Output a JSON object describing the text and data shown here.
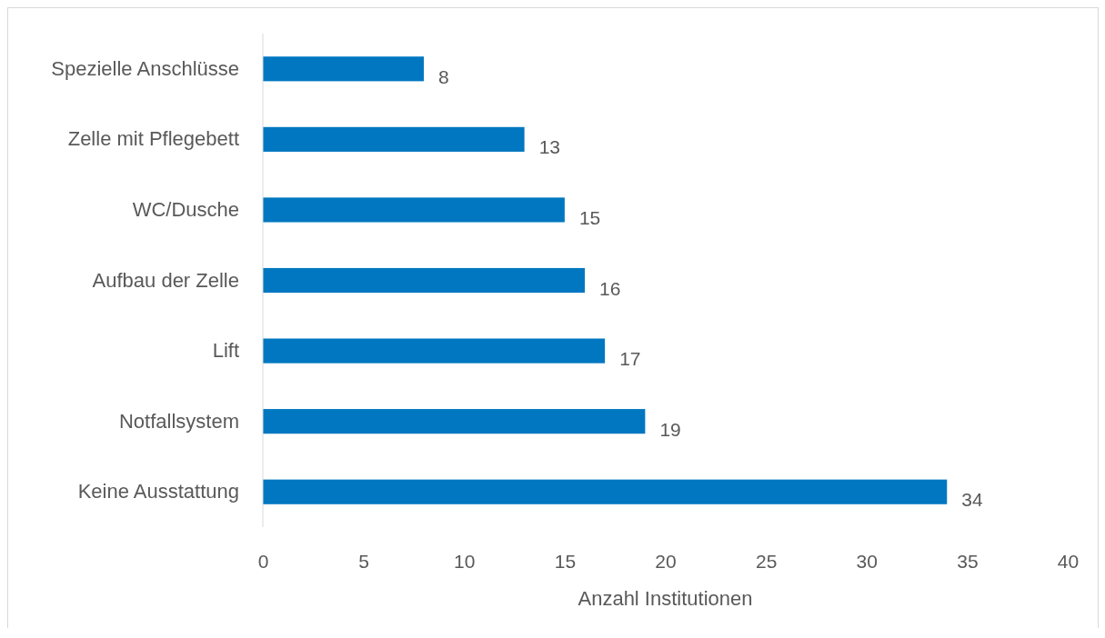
{
  "chart_data": {
    "type": "bar",
    "orientation": "horizontal",
    "categories": [
      "Spezielle Anschlüsse",
      "Zelle mit Pflegebett",
      "WC/Dusche",
      "Aufbau der Zelle",
      "Lift",
      "Notfallsystem",
      "Keine Ausstattung"
    ],
    "values": [
      8,
      13,
      15,
      16,
      17,
      19,
      34
    ],
    "color": "#0077c0",
    "xlim": [
      0,
      40
    ],
    "xticks": [
      0,
      5,
      10,
      15,
      20,
      25,
      30,
      35,
      40
    ],
    "xlabel": "Anzahl Institutionen",
    "data_labels": true,
    "grid": false
  }
}
